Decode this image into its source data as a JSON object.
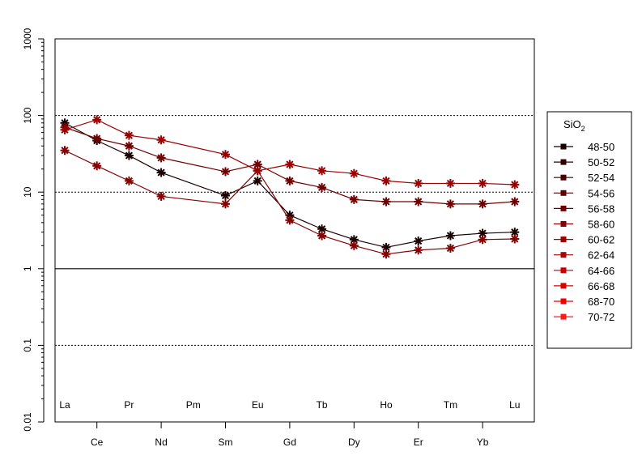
{
  "chart_data": {
    "type": "line",
    "y_scale": "log",
    "ylim": [
      0.01,
      1000
    ],
    "y_ticks": [
      "0.01",
      "0.1",
      "1",
      "10",
      "100",
      "1000"
    ],
    "y_tick_values": [
      0.01,
      0.1,
      1,
      10,
      100,
      1000
    ],
    "dotted_grid_at": [
      0.1,
      10,
      100
    ],
    "solid_line_at": [
      1
    ],
    "categories": [
      "La",
      "Ce",
      "Pr",
      "Nd",
      "Pm",
      "Sm",
      "Eu",
      "Gd",
      "Tb",
      "Dy",
      "Ho",
      "Er",
      "Tm",
      "Yb",
      "Lu"
    ],
    "legend": {
      "title_main": "SiO",
      "title_sub": "2",
      "placement": "right",
      "entries": [
        {
          "label": "48-50",
          "color": "#1a0000"
        },
        {
          "label": "50-52",
          "color": "#300000"
        },
        {
          "label": "52-54",
          "color": "#450000"
        },
        {
          "label": "54-56",
          "color": "#5a0000"
        },
        {
          "label": "56-58",
          "color": "#700000"
        },
        {
          "label": "58-60",
          "color": "#850000"
        },
        {
          "label": "60-62",
          "color": "#9a0000"
        },
        {
          "label": "62-64",
          "color": "#b00000"
        },
        {
          "label": "64-66",
          "color": "#c50000"
        },
        {
          "label": "66-68",
          "color": "#da0000"
        },
        {
          "label": "68-70",
          "color": "#ef0000"
        },
        {
          "label": "70-72",
          "color": "#ff1a1a"
        }
      ]
    },
    "series": [
      {
        "color": "#1a0000",
        "values": [
          80,
          47,
          30,
          18,
          null,
          9,
          14,
          5,
          3.3,
          2.4,
          1.9,
          2.3,
          2.7,
          2.9,
          3.0
        ]
      },
      {
        "color": "#700000",
        "values": [
          70,
          50,
          40,
          28,
          null,
          18.5,
          23,
          14,
          11.5,
          8,
          7.5,
          7.5,
          7,
          7,
          7.5
        ]
      },
      {
        "color": "#850000",
        "values": [
          35,
          22,
          14,
          8.8,
          null,
          7,
          19,
          4.3,
          2.7,
          2,
          1.55,
          1.75,
          1.85,
          2.4,
          2.45
        ]
      },
      {
        "color": "#9a0000",
        "values": [
          65,
          88,
          55,
          48,
          null,
          31,
          19,
          23,
          19,
          17.5,
          14,
          13,
          13,
          13,
          12.5
        ]
      }
    ]
  }
}
